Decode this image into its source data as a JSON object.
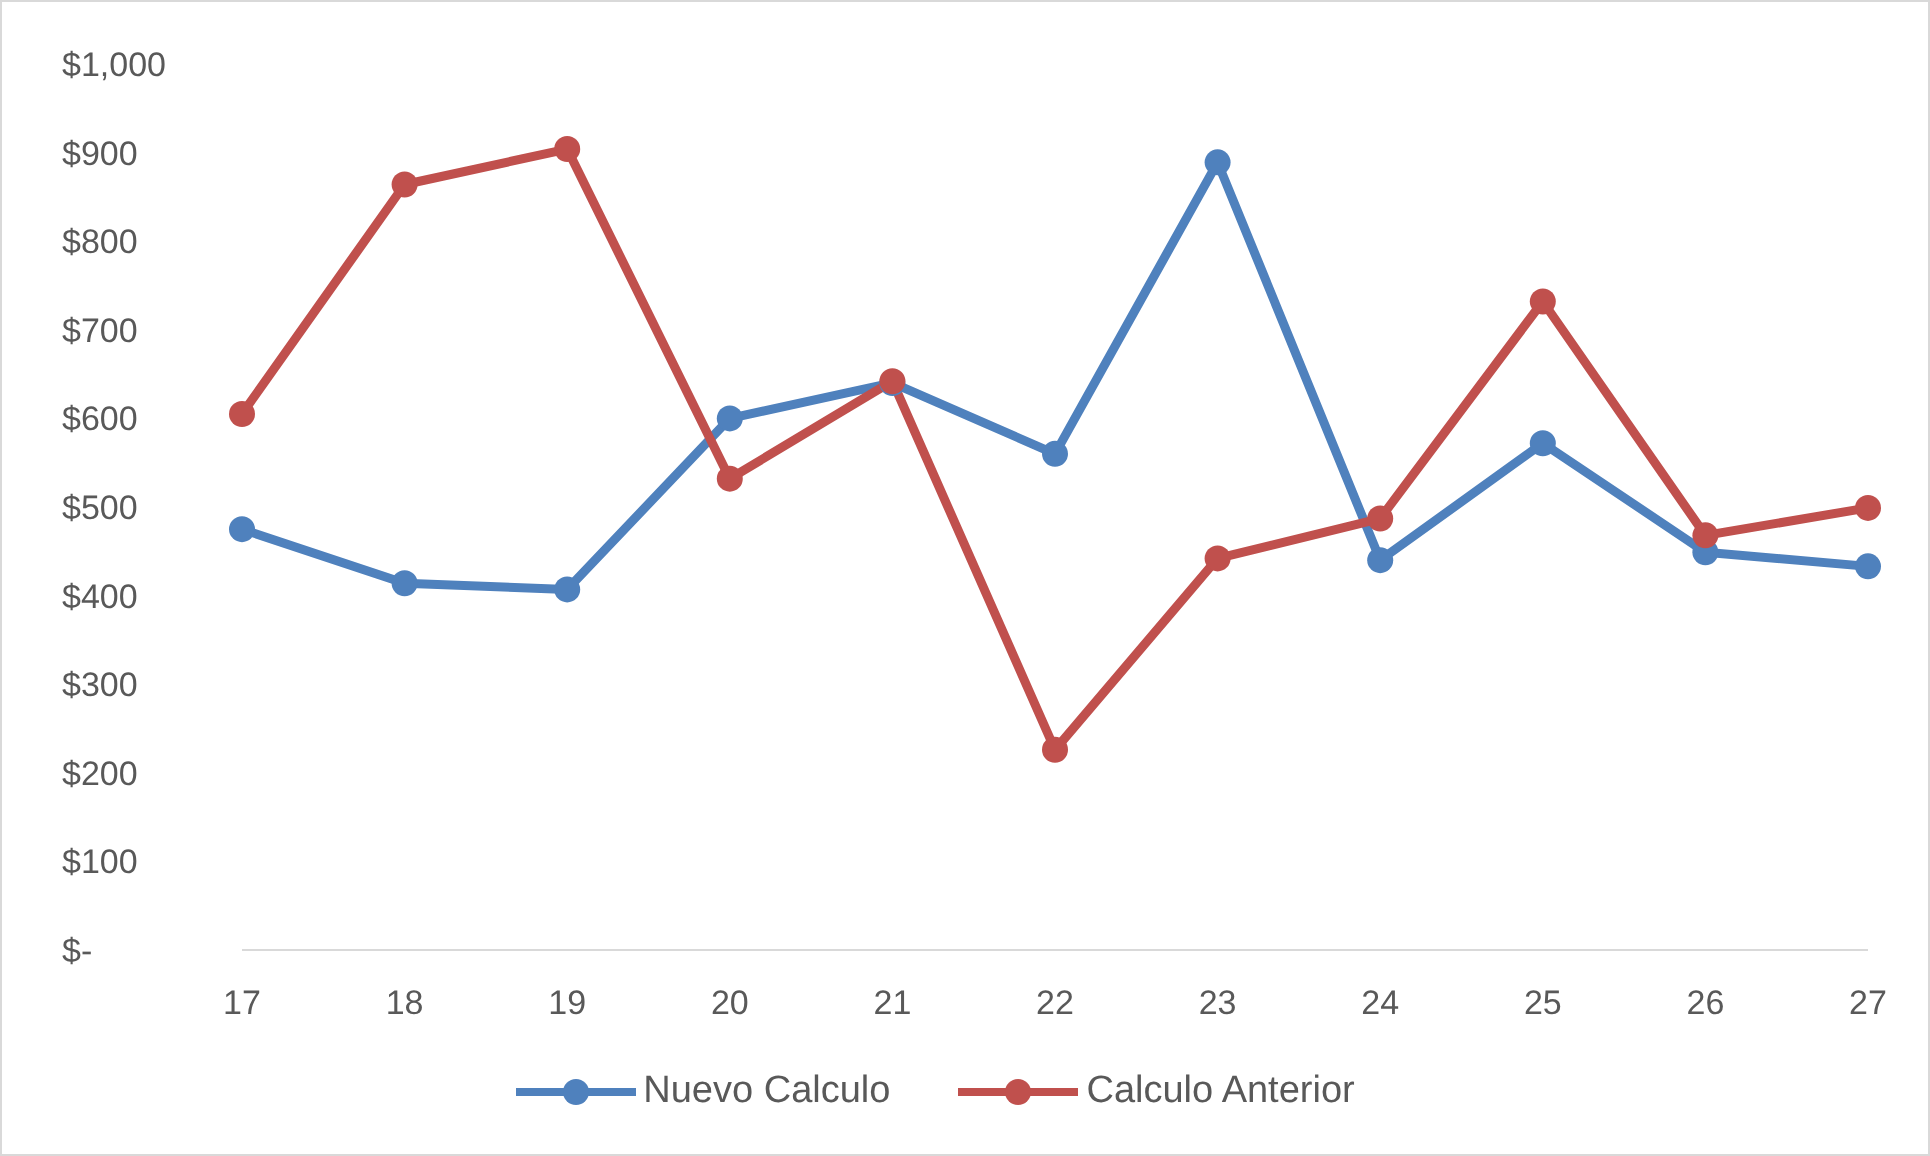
{
  "chart_data": {
    "type": "line",
    "categories": [
      "17",
      "18",
      "19",
      "20",
      "21",
      "22",
      "23",
      "24",
      "25",
      "26",
      "27"
    ],
    "series": [
      {
        "name": "Nuevo Calculo",
        "color": "#4f81bd",
        "values": [
          475,
          414,
          407,
          600,
          640,
          560,
          889,
          440,
          572,
          449,
          433
        ]
      },
      {
        "name": "Calculo Anterior",
        "color": "#c0504d",
        "values": [
          605,
          864,
          904,
          532,
          642,
          226,
          442,
          487,
          732,
          468,
          499
        ]
      }
    ],
    "ylim": [
      0,
      1000
    ],
    "yticks": [
      {
        "value": 0,
        "label": "$-"
      },
      {
        "value": 100,
        "label": "$100"
      },
      {
        "value": 200,
        "label": "$200"
      },
      {
        "value": 300,
        "label": "$300"
      },
      {
        "value": 400,
        "label": "$400"
      },
      {
        "value": 500,
        "label": "$500"
      },
      {
        "value": 600,
        "label": "$600"
      },
      {
        "value": 700,
        "label": "$700"
      },
      {
        "value": 800,
        "label": "$800"
      },
      {
        "value": 900,
        "label": "$900"
      },
      {
        "value": 1000,
        "label": "$1,000"
      }
    ],
    "grid": false,
    "legend": "bottom",
    "marker": "circle",
    "line_style": "solid"
  }
}
